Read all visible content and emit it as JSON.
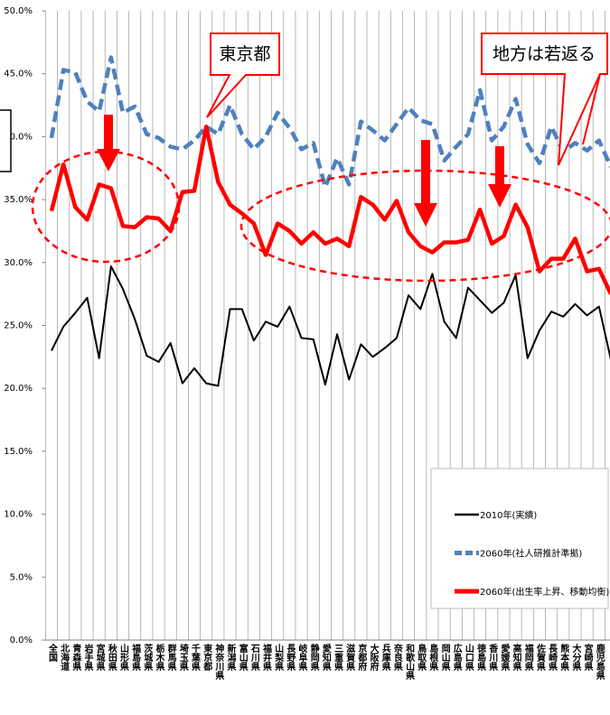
{
  "chart_data": {
    "type": "line",
    "categories": [
      "全国",
      "北海道",
      "青森県",
      "岩手県",
      "宮城県",
      "秋田県",
      "山形県",
      "福島県",
      "茨城県",
      "栃木県",
      "群馬県",
      "埼玉県",
      "千葉県",
      "東京都",
      "神奈川県",
      "新潟県",
      "富山県",
      "石川県",
      "福井県",
      "山梨県",
      "長野県",
      "岐阜県",
      "静岡県",
      "愛知県",
      "三重県",
      "滋賀県",
      "京都府",
      "大阪府",
      "兵庫県",
      "奈良県",
      "和歌山県",
      "鳥取県",
      "島根県",
      "岡山県",
      "広島県",
      "山口県",
      "徳島県",
      "香川県",
      "愛媛県",
      "高知県",
      "福岡県",
      "佐賀県",
      "長崎県",
      "熊本県",
      "大分県",
      "宮崎県",
      "鹿児島県",
      null
    ],
    "series": [
      {
        "name": "2010年(実績)",
        "color": "#000000",
        "dash": false,
        "values": [
          23.0,
          24.9,
          26.0,
          27.2,
          22.4,
          29.7,
          27.9,
          25.5,
          22.6,
          22.1,
          23.6,
          20.4,
          21.6,
          20.4,
          20.2,
          26.3,
          26.3,
          23.8,
          25.3,
          24.9,
          26.5,
          24.0,
          23.9,
          20.3,
          24.3,
          20.7,
          23.5,
          22.5,
          23.2,
          24.0,
          27.4,
          26.3,
          29.1,
          25.3,
          24.0,
          28.0,
          27.0,
          26.0,
          26.8,
          29.0,
          22.4,
          24.6,
          26.1,
          25.7,
          26.7,
          25.8,
          26.5,
          22.3
        ]
      },
      {
        "name": "2060年(社人研推計準拠)",
        "color": "#4f81bd",
        "dash": true,
        "values": [
          39.9,
          45.3,
          45.1,
          42.8,
          42.0,
          46.3,
          41.9,
          42.4,
          40.2,
          39.9,
          39.2,
          39.0,
          39.7,
          40.8,
          40.2,
          42.5,
          40.2,
          39.0,
          40.0,
          41.9,
          40.7,
          39.0,
          39.5,
          36.0,
          38.3,
          36.2,
          41.2,
          40.5,
          39.7,
          41.0,
          42.3,
          41.3,
          41.0,
          38.1,
          39.2,
          40.2,
          43.7,
          39.7,
          40.8,
          43.0,
          39.4,
          37.9,
          40.8,
          38.8,
          39.5,
          38.9,
          39.7,
          37.6
        ]
      },
      {
        "name": "2060年(出生率上昇、移動均衡)",
        "color": "#ff0000",
        "dash": false,
        "values": [
          34.1,
          37.8,
          34.4,
          33.4,
          36.2,
          35.9,
          32.9,
          32.8,
          33.6,
          33.5,
          32.5,
          35.6,
          35.7,
          40.8,
          36.4,
          34.6,
          33.9,
          33.1,
          30.6,
          33.1,
          32.5,
          31.5,
          32.4,
          31.5,
          31.9,
          31.3,
          35.2,
          34.6,
          33.4,
          34.9,
          32.4,
          31.3,
          30.8,
          31.6,
          31.6,
          31.8,
          34.2,
          31.5,
          32.1,
          34.6,
          32.8,
          29.3,
          30.3,
          30.3,
          31.9,
          29.3,
          29.5,
          27.5
        ]
      }
    ],
    "ylim": [
      0,
      50
    ],
    "yticks": [
      {
        "value": 0,
        "label": "0.0%"
      },
      {
        "value": 5,
        "label": "5.0%"
      },
      {
        "value": 10,
        "label": "10.0%"
      },
      {
        "value": 15,
        "label": "15.0%"
      },
      {
        "value": 20,
        "label": "20.0%"
      },
      {
        "value": 25,
        "label": "25.0%"
      },
      {
        "value": 30,
        "label": "30.0%"
      },
      {
        "value": 35,
        "label": "35.0%"
      },
      {
        "value": 40,
        "label": "40.0%"
      },
      {
        "value": 45,
        "label": "45.0%"
      },
      {
        "value": 50,
        "label": "50.0%"
      }
    ],
    "grid": "vertical",
    "legend": "lower right",
    "annotations": [
      "東京都",
      "地方は若返る"
    ]
  }
}
